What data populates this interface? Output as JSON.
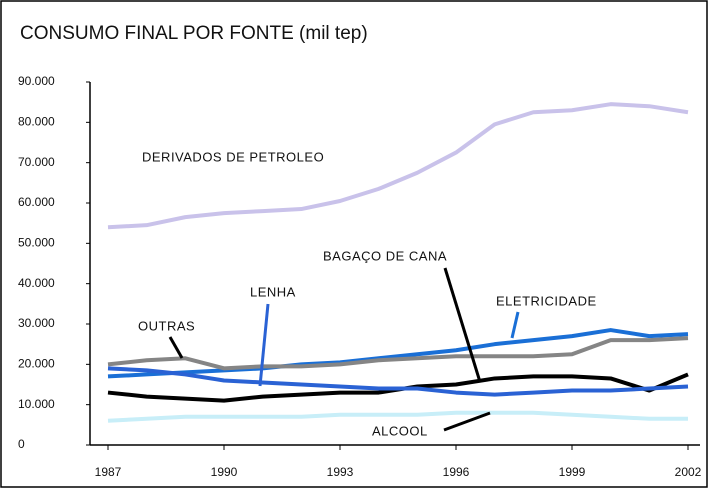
{
  "chart_data": {
    "type": "line",
    "title": "CONSUMO FINAL POR FONTE (mil tep)",
    "x": [
      1987,
      1988,
      1989,
      1990,
      1991,
      1992,
      1993,
      1994,
      1995,
      1996,
      1997,
      1998,
      1999,
      2000,
      2001,
      2002
    ],
    "xlim": [
      1987,
      2002
    ],
    "xticks": [
      1987,
      1990,
      1993,
      1996,
      1999,
      2002
    ],
    "ylim": [
      0,
      90000
    ],
    "yticks": [
      0,
      {
        "value": 10000,
        "label": "10.000"
      },
      {
        "value": 20000,
        "label": "20.000"
      },
      {
        "value": 30000,
        "label": "30.000"
      },
      {
        "value": 40000,
        "label": "40.000"
      },
      {
        "value": 50000,
        "label": "50.000"
      },
      {
        "value": 60000,
        "label": "60.000"
      },
      {
        "value": 70000,
        "label": "70.000"
      },
      {
        "value": 80000,
        "label": "80.000"
      },
      {
        "value": 90000,
        "label": "90.000"
      }
    ],
    "grid": false,
    "series": [
      {
        "name": "DERIVADOS DE PETROLEO",
        "color": "#c9c2ea",
        "values": [
          54000,
          54500,
          56500,
          57500,
          58000,
          58500,
          60500,
          63500,
          67500,
          72500,
          79500,
          82500,
          83000,
          84500,
          84000,
          82500
        ]
      },
      {
        "name": "ELETRICIDADE",
        "color": "#1a6fd6",
        "values": [
          17000,
          17500,
          18000,
          18500,
          19000,
          20000,
          20500,
          21500,
          22500,
          23500,
          25000,
          26000,
          27000,
          28500,
          27000,
          27500
        ]
      },
      {
        "name": "OUTRAS",
        "color": "#858585",
        "values": [
          20000,
          21000,
          21500,
          19000,
          19500,
          19500,
          20000,
          21000,
          21500,
          22000,
          22000,
          22000,
          22500,
          26000,
          26000,
          26500
        ]
      },
      {
        "name": "BAGAÇO DE CANA",
        "color": "#000000",
        "values": [
          13000,
          12000,
          11500,
          11000,
          12000,
          12500,
          13000,
          13000,
          14500,
          15000,
          16500,
          17000,
          17000,
          16500,
          13500,
          17500
        ]
      },
      {
        "name": "LENHA",
        "color": "#2a62d4",
        "values": [
          19000,
          18500,
          17500,
          16000,
          15500,
          15000,
          14500,
          14000,
          14000,
          13000,
          12500,
          13000,
          13500,
          13500,
          14000,
          14500
        ]
      },
      {
        "name": "ALCOOL",
        "color": "#c8eef8",
        "values": [
          6000,
          6500,
          7000,
          7000,
          7000,
          7000,
          7500,
          7500,
          7500,
          8000,
          8000,
          8000,
          7500,
          7000,
          6500,
          6500
        ]
      }
    ]
  }
}
